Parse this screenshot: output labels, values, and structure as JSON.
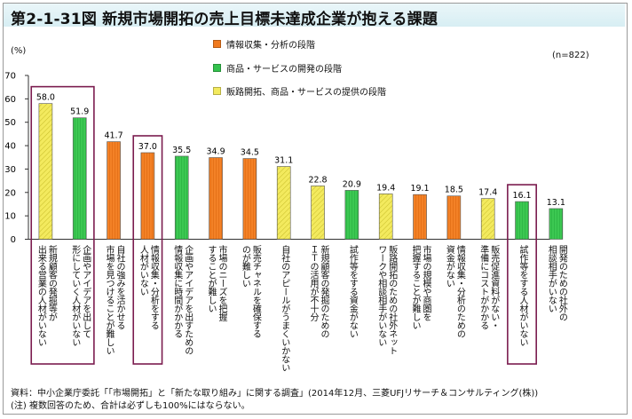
{
  "title": "第2-1-31図 新規市場開拓の売上目標未達成企業が抱える課題",
  "unit": "(%)",
  "sample": "(n=822)",
  "source": "資料：中小企業庁委託「「市場開拓」と「新たな取り組み」に関する調査」(2014年12月、三菱UFJリサーチ＆コンサルティング(株))",
  "note": "(注)  複数回答のため、合計は必ずしも100%にはならない。",
  "colors": {
    "research": "#f07a1e",
    "development": "#33c24d",
    "sales": "#f3ea5e",
    "highlight_box": "#7b1c4f"
  },
  "chart_data": {
    "type": "bar",
    "title": "第2-1-31図 新規市場開拓の売上目標未達成企業が抱える課題",
    "ylabel": "(%)",
    "ylim": [
      0,
      70
    ],
    "yticks": [
      0,
      10,
      20,
      30,
      40,
      50,
      60,
      70
    ],
    "grid": false,
    "legend_position": "top",
    "legend": [
      {
        "name": "情報収集・分析の段階",
        "key": "research"
      },
      {
        "name": "商品・サービスの開発の段階",
        "key": "development"
      },
      {
        "name": "販路開拓、商品・サービスの提供の段階",
        "key": "sales"
      }
    ],
    "bars": [
      {
        "label": "新規顧客の発掘等が\n出来る営業の人材がいない",
        "value": 58.0,
        "value_label": "58.0",
        "stage": "sales",
        "highlight": true
      },
      {
        "label": "企画やアイデアを出して\n形にしていく人材がいない",
        "value": 51.9,
        "value_label": "51.9",
        "stage": "development",
        "highlight": true
      },
      {
        "label": "自社の強みを活かせる\n市場を見つけることが難しい",
        "value": 41.7,
        "value_label": "41.7",
        "stage": "research",
        "highlight": false
      },
      {
        "label": "情報収集・分析をする\n人材がいない",
        "value": 37.0,
        "value_label": "37.0",
        "stage": "research",
        "highlight": true
      },
      {
        "label": "企画やアイデアを出すための\n情報収集に時間がかかる",
        "value": 35.5,
        "value_label": "35.5",
        "stage": "development",
        "highlight": false
      },
      {
        "label": "市場のニーズを把握\nすることが難しい",
        "value": 34.9,
        "value_label": "34.9",
        "stage": "research",
        "highlight": false
      },
      {
        "label": "販売チャネルを確保する\nのが難しい",
        "value": 34.5,
        "value_label": "34.5",
        "stage": "research",
        "highlight": false
      },
      {
        "label": "自社のアピールがうまくいかない",
        "value": 31.1,
        "value_label": "31.1",
        "stage": "sales",
        "highlight": false
      },
      {
        "label": "新規顧客の発掘のための\nＩＴの活用が不十分",
        "value": 22.8,
        "value_label": "22.8",
        "stage": "sales",
        "highlight": false
      },
      {
        "label": "試作等をする資金がない",
        "value": 20.9,
        "value_label": "20.9",
        "stage": "development",
        "highlight": false
      },
      {
        "label": "販路開拓のための社外ネット\nワークや相談相手がいない",
        "value": 19.4,
        "value_label": "19.4",
        "stage": "sales",
        "highlight": false
      },
      {
        "label": "市場の規模や商圏を\n把握することが難しい",
        "value": 19.1,
        "value_label": "19.1",
        "stage": "research",
        "highlight": false
      },
      {
        "label": "情報収集・分析のための\n資金がない",
        "value": 18.5,
        "value_label": "18.5",
        "stage": "research",
        "highlight": false
      },
      {
        "label": "販売促進資料がない・\n準備にコストがかかる",
        "value": 17.4,
        "value_label": "17.4",
        "stage": "sales",
        "highlight": false
      },
      {
        "label": "試作等をする人材がいない",
        "value": 16.1,
        "value_label": "16.1",
        "stage": "development",
        "highlight": true
      },
      {
        "label": "開発のための社外の\n相談相手がいない",
        "value": 13.1,
        "value_label": "13.1",
        "stage": "development",
        "highlight": false
      }
    ],
    "highlight_groups": [
      [
        0,
        1
      ],
      [
        3
      ],
      [
        14
      ]
    ]
  }
}
